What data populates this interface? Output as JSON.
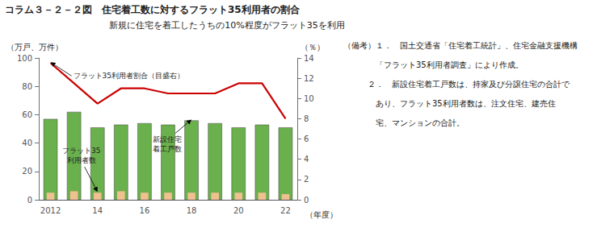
{
  "chart_data": {
    "type": "bar",
    "title": "コラム３－２－２図　住宅着工数に対するフラット35利用者の割合",
    "subtitle": "新規に住宅を着工したうちの10%程度がフラット35を利用",
    "categories": [
      "2012",
      null,
      "14",
      null,
      "16",
      null,
      "18",
      null,
      "20",
      null,
      "22"
    ],
    "series": [
      {
        "type": "bar",
        "color": "#6ab04c",
        "values": [
          57,
          62,
          51,
          53,
          54,
          53,
          56,
          54,
          51,
          53,
          51
        ]
      },
      {
        "type": "bar",
        "color": "#f0c090",
        "values": [
          5,
          6,
          5,
          6,
          5,
          5,
          5,
          5,
          5,
          5,
          4
        ]
      },
      {
        "type": "line",
        "color": "#cc0000",
        "axis": "y2",
        "values": [
          13.5,
          11.5,
          9.5,
          11.0,
          11.0,
          10.5,
          10.5,
          10.5,
          11.5,
          11.5,
          8.0
        ]
      }
    ],
    "ylim": [
      0,
      100
    ],
    "yticks": [
      0,
      20,
      40,
      60,
      80,
      100
    ],
    "y2lim": [
      0,
      14
    ],
    "y2ticks": [
      0,
      2,
      4,
      6,
      8,
      10,
      12,
      14
    ],
    "ylabel": "（万戸、万件）",
    "y2label": "（％）",
    "xlabel": "（年度）",
    "grid": false,
    "annotations": [
      "新設住宅\n着工戸数",
      "フラット35\n利用者数",
      "フラット35利用者割合（目盛右）"
    ],
    "notes": [
      "（備考）１．　国土交通省「住宅着工統計」、住宅金融支援機構",
      "　　　　「フラット35利用者調査」により作成。",
      "　　　２．　新設住宅着工戸数は、持家及び分譲住宅の合計で",
      "　　　　あり、フラット35利用者数は、注文住宅、建売住",
      "　　　　宅、マンションの合計。"
    ]
  }
}
